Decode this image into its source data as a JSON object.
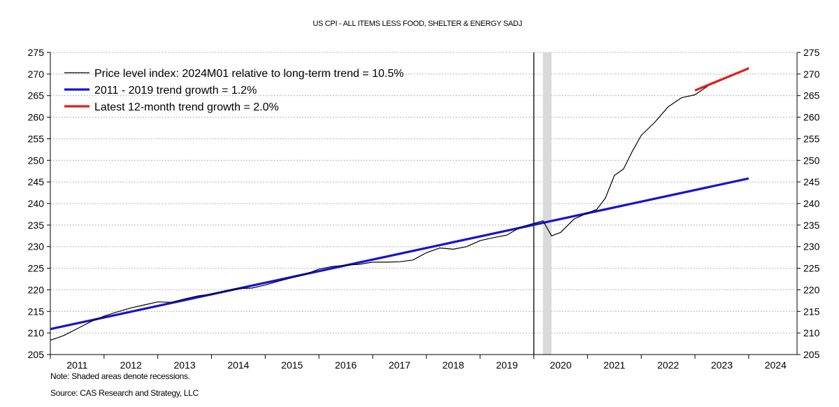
{
  "chart_data": {
    "type": "line",
    "title": "US CPI - ALL ITEMS LESS FOOD, SHELTER & ENERGY SADJ",
    "xlabel": "",
    "ylabel": "",
    "x_range": [
      2011.0,
      2024.9
    ],
    "ylim": [
      205,
      275
    ],
    "y_ticks": [
      205,
      210,
      215,
      220,
      225,
      230,
      235,
      240,
      245,
      250,
      255,
      260,
      265,
      270,
      275
    ],
    "x_tick_labels": [
      "2011",
      "2012",
      "2013",
      "2014",
      "2015",
      "2016",
      "2017",
      "2018",
      "2019",
      "2020",
      "2021",
      "2022",
      "2023",
      "2024"
    ],
    "grid": true,
    "legend_position": "top-left",
    "vertical_marker": 2020.0,
    "recession_band": [
      2020.17,
      2020.33
    ],
    "series": [
      {
        "name": "Price level index: 2024M01 relative to long-term trend = 10.5%",
        "color": "#000000",
        "x": [
          2011.0,
          2011.25,
          2011.5,
          2011.75,
          2012.0,
          2012.25,
          2012.5,
          2012.75,
          2013.0,
          2013.25,
          2013.5,
          2013.75,
          2014.0,
          2014.25,
          2014.5,
          2014.75,
          2015.0,
          2015.25,
          2015.5,
          2015.75,
          2016.0,
          2016.25,
          2016.5,
          2016.75,
          2017.0,
          2017.25,
          2017.5,
          2017.75,
          2018.0,
          2018.25,
          2018.5,
          2018.75,
          2019.0,
          2019.25,
          2019.5,
          2019.75,
          2020.0,
          2020.17,
          2020.33,
          2020.5,
          2020.75,
          2021.0,
          2021.17,
          2021.33,
          2021.5,
          2021.67,
          2021.83,
          2022.0,
          2022.25,
          2022.5,
          2022.75,
          2023.0,
          2023.25,
          2023.5,
          2023.75,
          2024.0
        ],
        "values": [
          208.3,
          209.4,
          211.0,
          212.6,
          213.9,
          214.9,
          215.8,
          216.5,
          217.2,
          217.1,
          217.9,
          218.6,
          219.0,
          219.7,
          220.3,
          220.4,
          221.1,
          222.0,
          222.8,
          223.6,
          224.8,
          225.4,
          225.7,
          225.9,
          226.4,
          226.4,
          226.5,
          226.9,
          228.6,
          229.7,
          229.4,
          230.0,
          231.4,
          232.1,
          232.7,
          234.5,
          235.4,
          236.0,
          232.5,
          233.3,
          236.4,
          237.8,
          238.6,
          241.2,
          246.5,
          248.0,
          252.0,
          255.8,
          258.8,
          262.4,
          264.5,
          265.2,
          267.3,
          268.6,
          270.0,
          271.5
        ],
        "line_width": 1.2
      },
      {
        "name": "2011 - 2019 trend growth = 1.2%",
        "color": "#1414d2",
        "x": [
          2011.0,
          2024.0
        ],
        "values": [
          210.9,
          245.8
        ],
        "line_width": 3.2
      },
      {
        "name": "Latest 12-month trend growth = 2.0%",
        "color": "#e51c1c",
        "x": [
          2023.0,
          2024.0
        ],
        "values": [
          266.2,
          271.3
        ],
        "line_width": 3.2
      }
    ]
  },
  "notes": {
    "recession_note": "Note: Shaded areas denote recessions.",
    "source": "Source: CAS Research and Strategy, LLC"
  }
}
